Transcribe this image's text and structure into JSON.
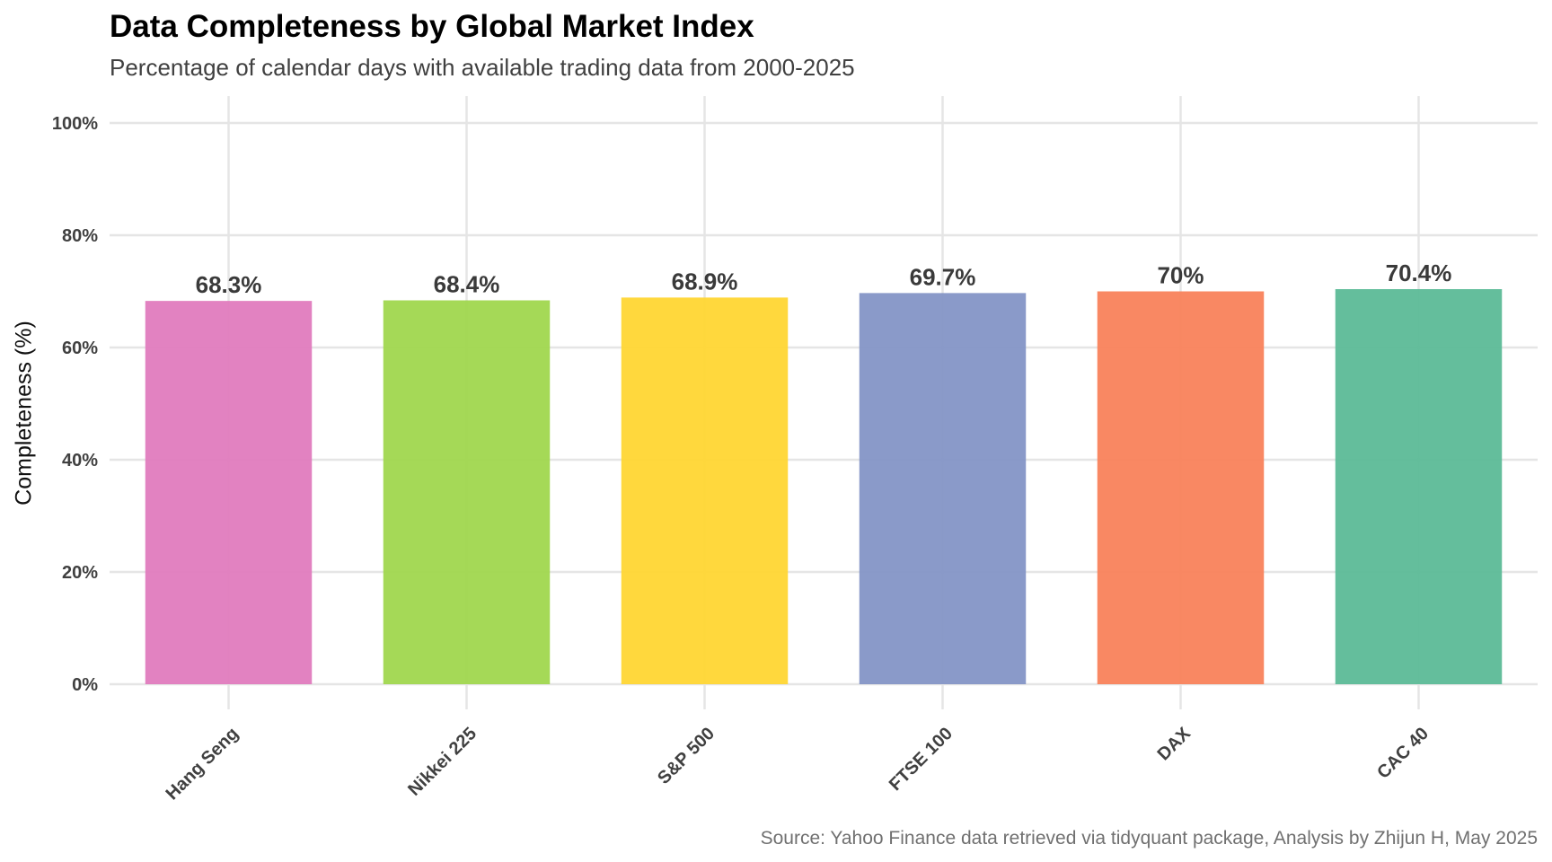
{
  "chart_data": {
    "type": "bar",
    "title": "Data Completeness by Global Market Index",
    "subtitle": "Percentage of calendar days with available trading data from 2000-2025",
    "caption": "Source: Yahoo Finance data retrieved via tidyquant package, Analysis by Zhijun H, May 2025",
    "xlabel": "",
    "ylabel": "Completeness (%)",
    "categories": [
      "Hang Seng",
      "Nikkei 225",
      "S&P 500",
      "FTSE 100",
      "DAX",
      "CAC 40"
    ],
    "values": [
      68.3,
      68.4,
      68.9,
      69.7,
      70.0,
      70.4
    ],
    "value_labels": [
      "68.3%",
      "68.4%",
      "68.9%",
      "69.7%",
      "70%",
      "70.4%"
    ],
    "colors": [
      "#E07BBE",
      "#A0D74E",
      "#FFD633",
      "#8495C6",
      "#F9825B",
      "#5CBB97"
    ],
    "ylim": [
      0,
      100
    ],
    "yticks": [
      0,
      20,
      40,
      60,
      80,
      100
    ],
    "ytick_labels": [
      "0%",
      "20%",
      "40%",
      "60%",
      "80%",
      "100%"
    ],
    "grid": true,
    "legend": "none",
    "gridline_color": "#E5E5E5"
  }
}
